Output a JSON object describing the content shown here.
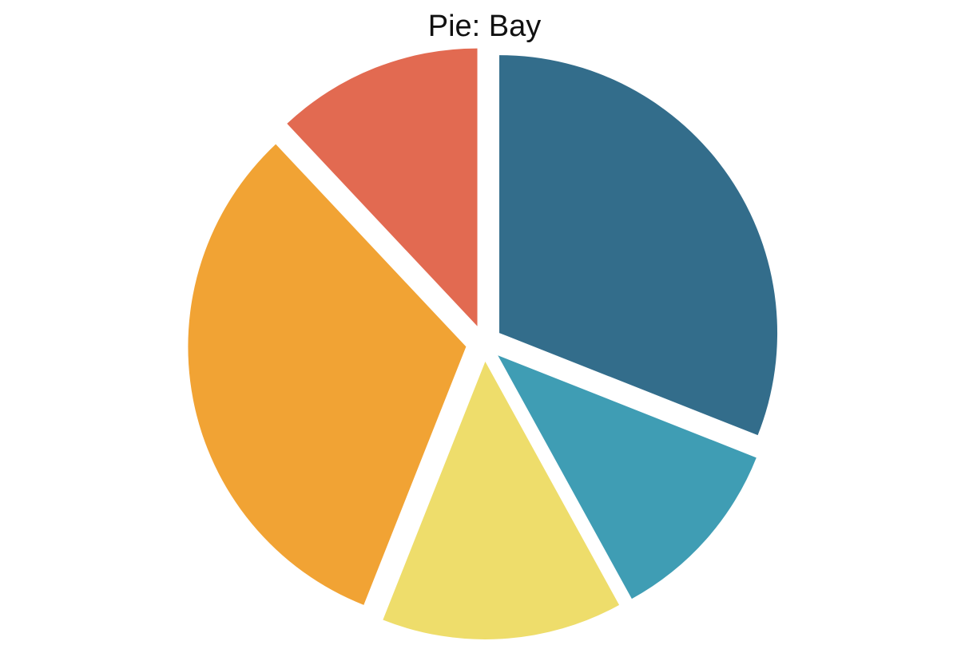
{
  "chart_data": {
    "type": "pie",
    "title": "Pie: Bay",
    "start_angle_deg": 0,
    "direction": "clockwise",
    "exploded": true,
    "slices": [
      {
        "value": 31,
        "color": "#336d8b"
      },
      {
        "value": 11,
        "color": "#3f9db4"
      },
      {
        "value": 14,
        "color": "#eedd6b"
      },
      {
        "value": 32,
        "color": "#f1a334"
      },
      {
        "value": 12,
        "color": "#e26a51"
      }
    ]
  }
}
